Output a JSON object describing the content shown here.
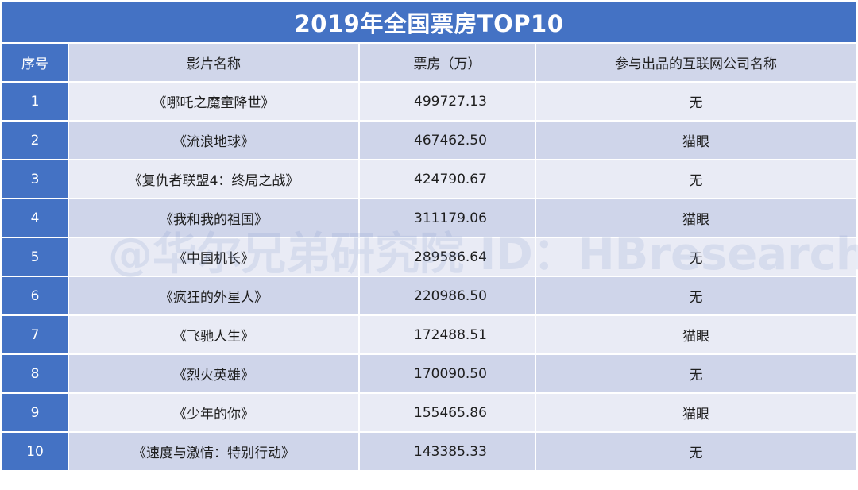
{
  "title": "2019年全国票房TOP10",
  "headers": {
    "index": "序号",
    "film": "影片名称",
    "gross": "票房（万）",
    "partner": "参与出品的互联网公司名称"
  },
  "rows": [
    {
      "index": "1",
      "film": "《哪吒之魔童降世》",
      "gross": "499727.13",
      "partner": "无"
    },
    {
      "index": "2",
      "film": "《流浪地球》",
      "gross": "467462.50",
      "partner": "猫眼"
    },
    {
      "index": "3",
      "film": "《复仇者联盟4：终局之战》",
      "gross": "424790.67",
      "partner": "无"
    },
    {
      "index": "4",
      "film": "《我和我的祖国》",
      "gross": "311179.06",
      "partner": "猫眼"
    },
    {
      "index": "5",
      "film": "《中国机长》",
      "gross": "289586.64",
      "partner": "无"
    },
    {
      "index": "6",
      "film": "《疯狂的外星人》",
      "gross": "220986.50",
      "partner": "无"
    },
    {
      "index": "7",
      "film": "《飞驰人生》",
      "gross": "172488.51",
      "partner": "猫眼"
    },
    {
      "index": "8",
      "film": "《烈火英雄》",
      "gross": "170090.50",
      "partner": "无"
    },
    {
      "index": "9",
      "film": "《少年的你》",
      "gross": "155465.86",
      "partner": "猫眼"
    },
    {
      "index": "10",
      "film": "《速度与激情：特别行动》",
      "gross": "143385.33",
      "partner": "无"
    }
  ],
  "watermark": "@华尔兄弟研究院 ID：HBresearch",
  "colors": {
    "header_blue": "#4472c4",
    "row_light": "#e9ebf5",
    "row_dark": "#cfd5ea"
  }
}
